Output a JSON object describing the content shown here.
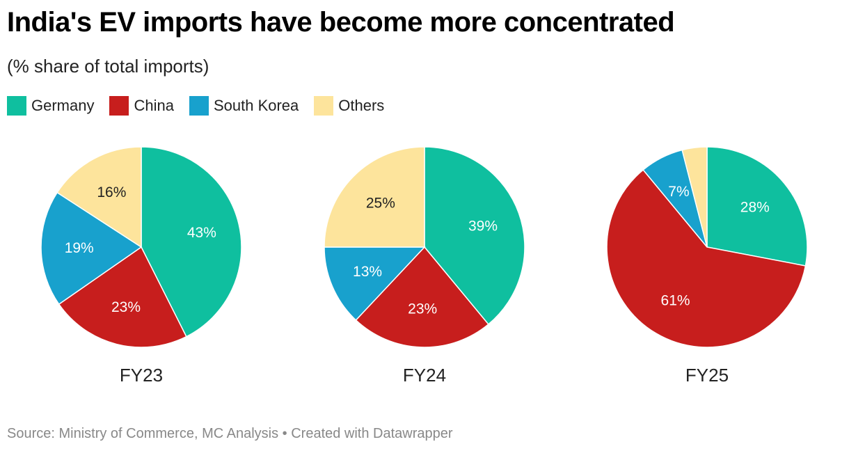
{
  "header": {
    "title": "India's EV imports have become more concentrated",
    "subtitle": "(% share of total imports)"
  },
  "legend": [
    {
      "label": "Germany",
      "color": "#0fbf9f"
    },
    {
      "label": "China",
      "color": "#c71e1d"
    },
    {
      "label": "South Korea",
      "color": "#18a1cd"
    },
    {
      "label": "Others",
      "color": "#fde49c"
    }
  ],
  "chart_data": [
    {
      "type": "pie",
      "title": "FY23",
      "slices": [
        {
          "label": "Germany",
          "value": 43,
          "display": "43%"
        },
        {
          "label": "China",
          "value": 23,
          "display": "23%"
        },
        {
          "label": "South Korea",
          "value": 19,
          "display": "19%"
        },
        {
          "label": "Others",
          "value": 16,
          "display": "16%"
        }
      ]
    },
    {
      "type": "pie",
      "title": "FY24",
      "slices": [
        {
          "label": "Germany",
          "value": 39,
          "display": "39%"
        },
        {
          "label": "China",
          "value": 23,
          "display": "23%"
        },
        {
          "label": "South Korea",
          "value": 13,
          "display": "13%"
        },
        {
          "label": "Others",
          "value": 25,
          "display": "25%"
        }
      ]
    },
    {
      "type": "pie",
      "title": "FY25",
      "slices": [
        {
          "label": "Germany",
          "value": 28,
          "display": "28%"
        },
        {
          "label": "China",
          "value": 61,
          "display": "61%"
        },
        {
          "label": "South Korea",
          "value": 7,
          "display": "7%"
        },
        {
          "label": "Others",
          "value": 4,
          "display": ""
        }
      ]
    }
  ],
  "footer": {
    "source": "Source: Ministry of Commerce, MC Analysis • Created with Datawrapper"
  }
}
